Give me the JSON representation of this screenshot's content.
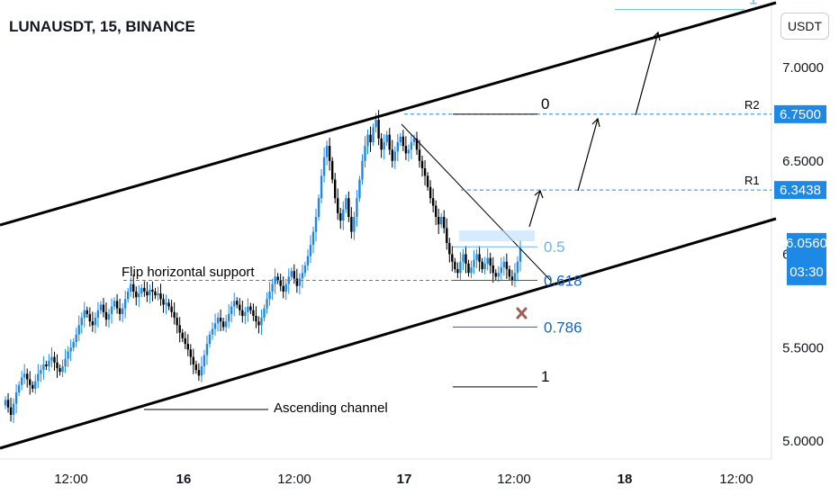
{
  "header": {
    "title": "LUNAUSDT, 15, BINANCE",
    "currency_label": "USDT"
  },
  "chart_data": {
    "type": "candlestick",
    "symbol": "LUNAUSDT",
    "interval": "15",
    "exchange": "BINANCE",
    "y_axis": {
      "ticks": [
        5.0,
        5.5,
        6.0,
        6.5,
        7.0
      ],
      "tick_labels": [
        "5.0000",
        "5.5000",
        "6.0000",
        "6.5000",
        "7.0000"
      ],
      "ylim": [
        4.98,
        7.3
      ]
    },
    "x_axis": {
      "tick_labels": [
        "12:00",
        "16",
        "12:00",
        "17",
        "12:00",
        "18",
        "12:00"
      ]
    },
    "price_labels": [
      {
        "value": 6.75,
        "label": "6.7500",
        "style": "level"
      },
      {
        "value": 6.3438,
        "label": "6.3438",
        "style": "level"
      },
      {
        "value": 6.056,
        "label": "6.0560",
        "style": "current"
      }
    ],
    "countdown_label": "03:30",
    "resistance_levels": [
      {
        "name": "R2",
        "value": 6.75
      },
      {
        "name": "R1",
        "value": 6.3438
      }
    ],
    "fibonacci_levels": [
      {
        "label": "1",
        "value": 7.31
      },
      {
        "label": "0",
        "value": 6.75
      },
      {
        "label": "0.5",
        "value": 6.04
      },
      {
        "label": "0.618",
        "value": 5.86
      },
      {
        "label": "0.786",
        "value": 5.61
      },
      {
        "label": "1",
        "value": 5.29
      }
    ],
    "annotations": {
      "support": "Flip horizontal support",
      "channel": "Ascending channel"
    },
    "support_level": 5.86,
    "colors": {
      "up": "#1e88e5",
      "down": "#000000",
      "level": "#2962ff",
      "current": "#1e88e5",
      "fib_light": "#64b5f6",
      "fib_dark": "#1565c0",
      "stop": "#a0605a"
    },
    "price_series": [
      5.22,
      5.18,
      5.14,
      5.2,
      5.26,
      5.3,
      5.34,
      5.36,
      5.33,
      5.3,
      5.28,
      5.32,
      5.36,
      5.38,
      5.41,
      5.4,
      5.43,
      5.45,
      5.42,
      5.39,
      5.37,
      5.4,
      5.44,
      5.48,
      5.5,
      5.53,
      5.57,
      5.62,
      5.66,
      5.7,
      5.68,
      5.64,
      5.62,
      5.66,
      5.7,
      5.73,
      5.69,
      5.65,
      5.68,
      5.72,
      5.75,
      5.71,
      5.68,
      5.71,
      5.76,
      5.8,
      5.84,
      5.8,
      5.77,
      5.79,
      5.82,
      5.8,
      5.78,
      5.81,
      5.8,
      5.78,
      5.79,
      5.76,
      5.73,
      5.74,
      5.72,
      5.69,
      5.66,
      5.62,
      5.58,
      5.55,
      5.52,
      5.49,
      5.45,
      5.41,
      5.38,
      5.35,
      5.4,
      5.46,
      5.52,
      5.57,
      5.6,
      5.63,
      5.66,
      5.64,
      5.61,
      5.64,
      5.68,
      5.72,
      5.75,
      5.73,
      5.7,
      5.67,
      5.69,
      5.72,
      5.7,
      5.67,
      5.64,
      5.62,
      5.66,
      5.71,
      5.76,
      5.8,
      5.84,
      5.88,
      5.86,
      5.83,
      5.8,
      5.84,
      5.88,
      5.91,
      5.87,
      5.83,
      5.87,
      5.9,
      5.94,
      5.99,
      6.05,
      6.12,
      6.2,
      6.3,
      6.42,
      6.52,
      6.58,
      6.5,
      6.4,
      6.3,
      6.22,
      6.18,
      6.24,
      6.3,
      6.2,
      6.12,
      6.2,
      6.3,
      6.4,
      6.5,
      6.58,
      6.64,
      6.6,
      6.68,
      6.72,
      6.62,
      6.56,
      6.6,
      6.64,
      6.56,
      6.5,
      6.55,
      6.6,
      6.63,
      6.58,
      6.54,
      6.56,
      6.6,
      6.62,
      6.56,
      6.5,
      6.46,
      6.42,
      6.36,
      6.3,
      6.26,
      6.2,
      6.16,
      6.2,
      6.14,
      6.06,
      6.0,
      5.96,
      5.92,
      5.9,
      5.96,
      6.0,
      5.95,
      5.9,
      5.93,
      5.97,
      6.0,
      5.96,
      5.92,
      5.95,
      5.98,
      5.94,
      5.9,
      5.88,
      5.9,
      5.93,
      5.96,
      5.92,
      5.88,
      5.86,
      5.9,
      5.96,
      6.03
    ]
  }
}
